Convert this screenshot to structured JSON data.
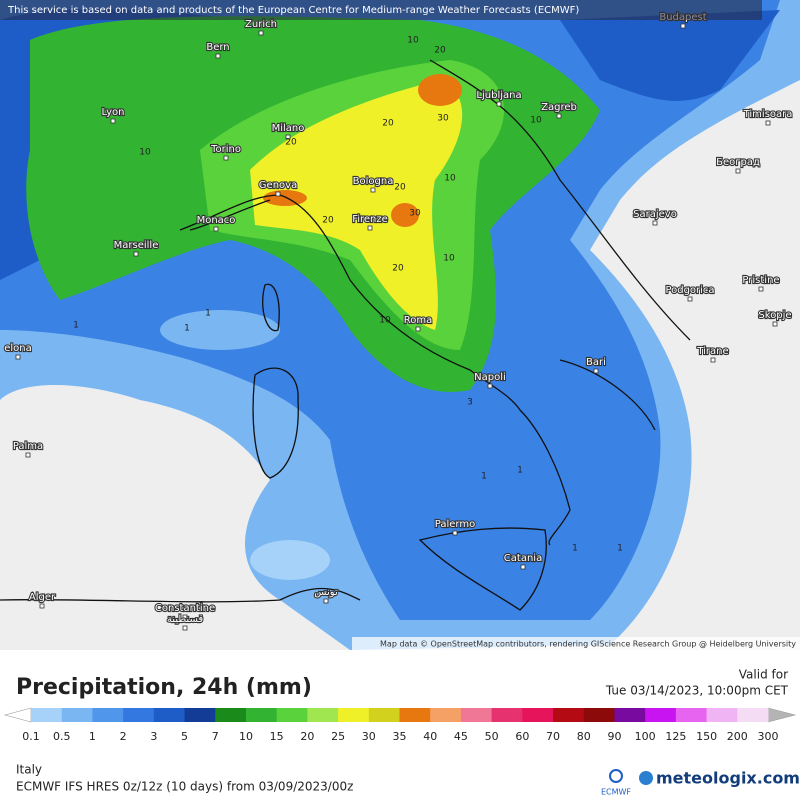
{
  "header": {
    "notice": "This service is based on data and products of the European Centre for Medium-range Weather Forecasts (ECMWF)"
  },
  "map": {
    "cities": [
      "Zurich",
      "Budapest",
      "Bern",
      "Ljubljana",
      "Zagreb",
      "Lyon",
      "Timisoara",
      "Milano",
      "Torino",
      "Београд",
      "Genova",
      "Bologna",
      "Monaco",
      "Firenze",
      "Sarajevo",
      "Marseille",
      "Pristine",
      "Podgorica",
      "Skopje",
      "Roma",
      "elona",
      "Tirane",
      "Bari",
      "Napoli",
      "Palma",
      "Palermo",
      "Catania",
      "Alger",
      "تونس",
      "Constantine",
      "قسنطينة"
    ],
    "contour_labels": [
      "10",
      "20",
      "20",
      "30",
      "10",
      "20",
      "20",
      "10",
      "20",
      "30",
      "20",
      "10",
      "10",
      "10",
      "1",
      "1",
      "1",
      "1",
      "1",
      "3",
      "1",
      "1"
    ],
    "attribution": "Map data © OpenStreetMap contributors, rendering GIScience Research Group @ Heidelberg University"
  },
  "title": "Precipitation, 24h (mm)",
  "valid": {
    "label": "Valid for",
    "time": "Tue 03/14/2023, 10:00pm CET"
  },
  "legend": {
    "levels": [
      0.1,
      0.5,
      1,
      2,
      3,
      5,
      7,
      10,
      15,
      20,
      25,
      30,
      35,
      40,
      45,
      50,
      60,
      70,
      80,
      90,
      100,
      125,
      150,
      200,
      300
    ],
    "colors": [
      "#a6d2fa",
      "#7ab6f2",
      "#5096ea",
      "#3278e0",
      "#1e5cc8",
      "#123c96",
      "#1a8a1a",
      "#32b432",
      "#5ad23c",
      "#a0e650",
      "#f0f028",
      "#d2d21e",
      "#e6780f",
      "#f5a064",
      "#f07896",
      "#e6326e",
      "#e6145a",
      "#b40a14",
      "#8c0a0a",
      "#780aa0",
      "#c814f0",
      "#e664f0",
      "#f0b4f5",
      "#f5dcf5"
    ],
    "under_color": "#ffffff",
    "over_color": "#b4b4b4"
  },
  "footer": {
    "region": "Italy",
    "model": "ECMWF IFS HRES 0z/12z (10 days) from 03/09/2023/00z",
    "ecmwf": "ECMWF",
    "brand": "meteologix.com"
  }
}
